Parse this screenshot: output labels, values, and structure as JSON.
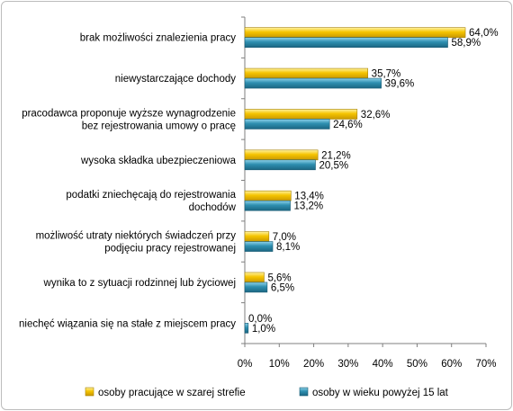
{
  "chart_data": {
    "type": "bar",
    "orientation": "horizontal",
    "categories": [
      [
        "brak możliwości  znalezienia pracy"
      ],
      [
        "niewystarczające dochody"
      ],
      [
        "pracodawca proponuje wyższe wynagrodzenie",
        "bez rejestrowania umowy o pracę"
      ],
      [
        "wysoka składka  ubezpieczeniowa"
      ],
      [
        "podatki zniechęcają do rejestrowania",
        "dochodów"
      ],
      [
        "możliwość  utraty niektórych świadczeń  przy",
        "podjęciu pracy rejestrowanej"
      ],
      [
        "wynika to z sytuacji rodzinnej lub życiowej"
      ],
      [
        "niechęć wiązania się na stałe z miejscem pracy"
      ]
    ],
    "series": [
      {
        "name": "osoby pracujące w szarej strefie",
        "color": "#f5c400",
        "values": [
          64.0,
          35.7,
          32.6,
          21.2,
          13.4,
          7.0,
          5.6,
          0.0
        ],
        "labels": [
          "64,0%",
          "35,7%",
          "32,6%",
          "21,2%",
          "13,4%",
          "7,0%",
          "5,6%",
          "0,0%"
        ]
      },
      {
        "name": "osoby w wieku powyżej 15 lat",
        "color": "#2e8fb0",
        "values": [
          58.9,
          39.6,
          24.6,
          20.5,
          13.2,
          8.1,
          6.5,
          1.0
        ],
        "labels": [
          "58,9%",
          "39,6%",
          "24,6%",
          "20,5%",
          "13,2%",
          "8,1%",
          "6,5%",
          "1,0%"
        ]
      }
    ],
    "xlim": [
      0,
      70
    ],
    "xticks": [
      "0%",
      "10%",
      "20%",
      "30%",
      "40%",
      "50%",
      "60%",
      "70%"
    ],
    "grid": false,
    "legend": "bottom"
  }
}
